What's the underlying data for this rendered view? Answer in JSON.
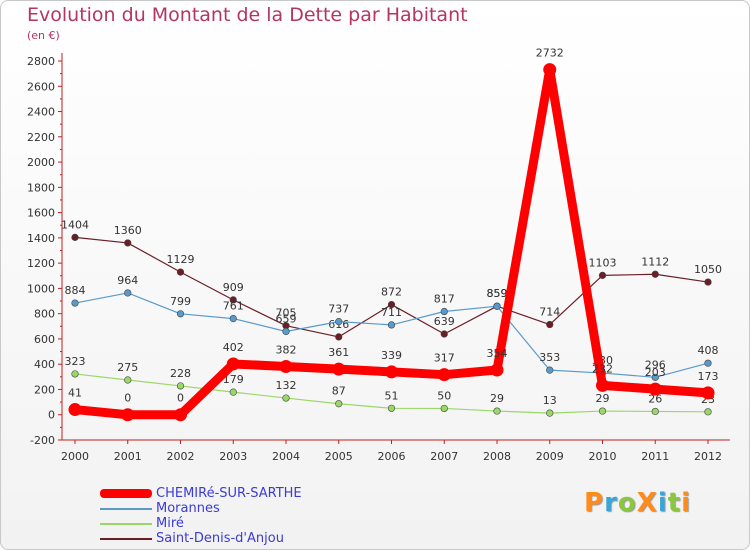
{
  "chart_data": {
    "type": "line",
    "title": "Evolution du Montant de la Dette par Habitant",
    "subtitle": "(en €)",
    "categories": [
      "2000",
      "2001",
      "2002",
      "2003",
      "2004",
      "2005",
      "2006",
      "2007",
      "2008",
      "2009",
      "2010",
      "2011",
      "2012"
    ],
    "ylim": [
      -200,
      2800
    ],
    "yticks": [
      -200,
      0,
      200,
      400,
      600,
      800,
      1000,
      1200,
      1400,
      1600,
      1800,
      2000,
      2200,
      2400,
      2600,
      2800
    ],
    "grid": false,
    "legend_position": "bottom",
    "series": [
      {
        "name": "Saint-Denis-d'Anjou",
        "color": "#6b1e25",
        "values": [
          1404,
          1360,
          1129,
          909,
          705,
          616,
          872,
          639,
          859,
          714,
          1103,
          1112,
          1050
        ],
        "labels": [
          "1404",
          "1360",
          "1129",
          "909",
          "705",
          "616",
          "872",
          "639",
          "859",
          "714",
          "1103",
          "1112",
          "1050"
        ]
      },
      {
        "name": "Morannes",
        "color": "#5a9acb",
        "values": [
          884,
          964,
          799,
          761,
          659,
          737,
          711,
          817,
          859,
          353,
          330,
          296,
          408
        ],
        "labels": [
          "884",
          "964",
          "799",
          "761",
          "659",
          "737",
          "711",
          "817",
          "859",
          "353",
          "330",
          "296",
          "408"
        ]
      },
      {
        "name": "Miré",
        "color": "#99d867",
        "values": [
          323,
          275,
          228,
          179,
          132,
          87,
          51,
          50,
          29,
          13,
          29,
          26,
          23
        ],
        "labels": [
          "323",
          "275",
          "228",
          "179",
          "132",
          "87",
          "51",
          "50",
          "29",
          "13",
          "29",
          "26",
          "23"
        ]
      },
      {
        "name": "CHEMIRé-SUR-SARTHE",
        "color": "#ff0000",
        "values": [
          41,
          0,
          0,
          402,
          382,
          361,
          339,
          317,
          354,
          2732,
          232,
          203,
          173
        ],
        "labels": [
          "41",
          "0",
          "0",
          "402",
          "382",
          "361",
          "339",
          "317",
          "354",
          "2732",
          "232",
          "203",
          "173"
        ]
      }
    ]
  },
  "legend": [
    {
      "label": "CHEMIRé-SUR-SARTHE",
      "color": "#ff0000",
      "text_color": "#3b3bd6"
    },
    {
      "label": "Morannes",
      "color": "#5a9acb",
      "text_color": "#3b3bd6"
    },
    {
      "label": "Miré",
      "color": "#99d867",
      "text_color": "#3b3bd6"
    },
    {
      "label": "Saint-Denis-d'Anjou",
      "color": "#6b1e25",
      "text_color": "#3b3bd6"
    }
  ],
  "logo": {
    "text": "ProXiti",
    "colors": [
      "#ff8c1a",
      "#3aa6d8",
      "#8cc63f",
      "#ff8c1a",
      "#3aa6d8",
      "#8cc63f",
      "#ff8c1a"
    ]
  }
}
